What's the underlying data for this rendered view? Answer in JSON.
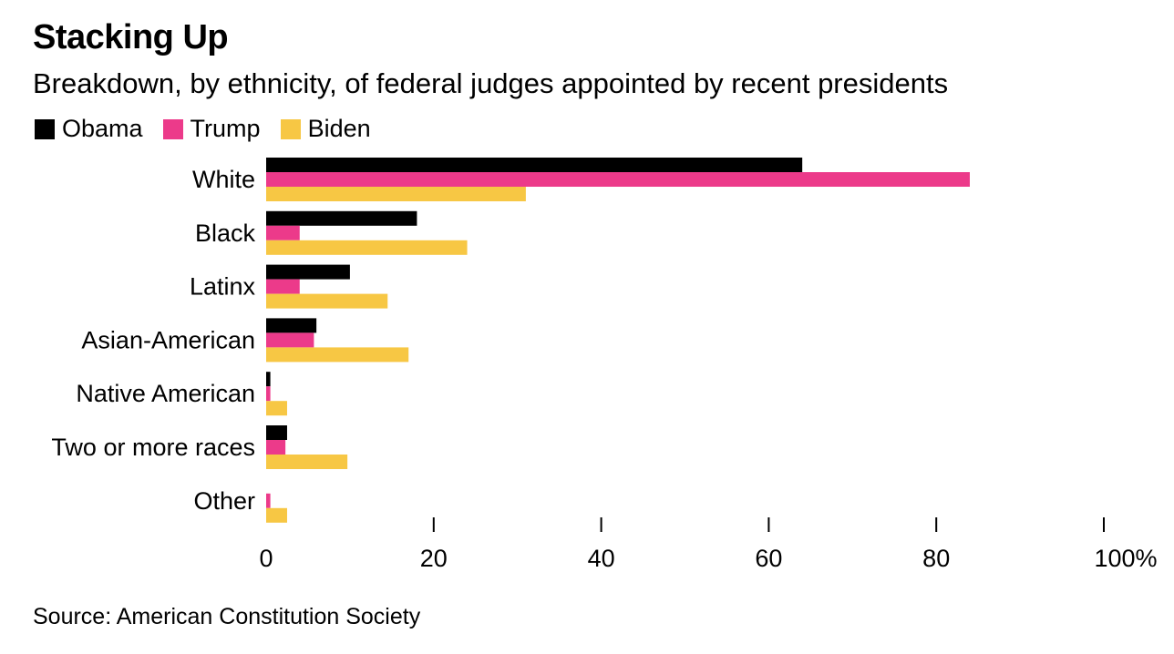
{
  "title": "Stacking Up",
  "subtitle": "Breakdown, by ethnicity, of federal judges appointed by recent presidents",
  "source": "Source: American Constitution Society",
  "colors": {
    "Obama": "#000000",
    "Trump": "#ec3a8a",
    "Biden": "#f7c744"
  },
  "chart_data": {
    "type": "bar",
    "orientation": "horizontal",
    "categories": [
      "White",
      "Black",
      "Latinx",
      "Asian-American",
      "Native American",
      "Two or more races",
      "Other"
    ],
    "series": [
      {
        "name": "Obama",
        "values": [
          64,
          18,
          10,
          6,
          0.5,
          2.5,
          0
        ]
      },
      {
        "name": "Trump",
        "values": [
          84,
          4,
          4,
          5.7,
          0.5,
          2.3,
          0.5
        ]
      },
      {
        "name": "Biden",
        "values": [
          31,
          24,
          14.5,
          17,
          2.5,
          9.7,
          2.5
        ]
      }
    ],
    "xlim": [
      0,
      100
    ],
    "x_ticks": [
      "0",
      "20",
      "40",
      "60",
      "80",
      "100%"
    ],
    "grid": false,
    "legend_position": "top-left"
  }
}
